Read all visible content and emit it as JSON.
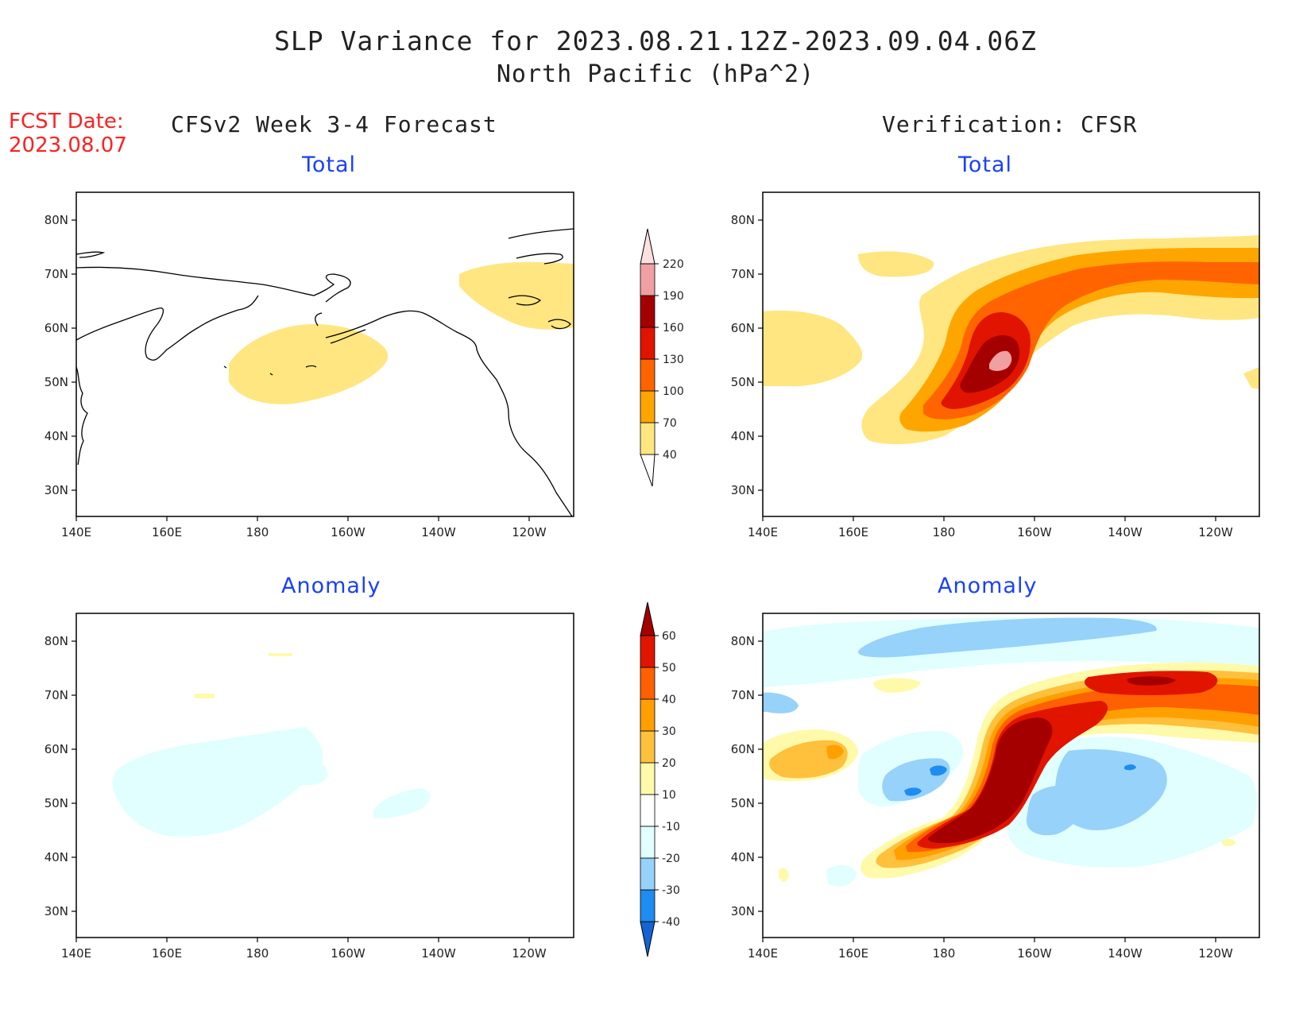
{
  "title_line1": "SLP Variance for 2023.08.21.12Z-2023.09.04.06Z",
  "title_line2": "North Pacific (hPa^2)",
  "fcst_label": "FCST Date:",
  "fcst_date": "2023.08.07",
  "left_header": "CFSv2 Week 3-4 Forecast",
  "right_header": "Verification: CFSR",
  "panels": {
    "fc_total": {
      "title": "Total"
    },
    "vf_total": {
      "title": "Total"
    },
    "fc_anom": {
      "title": "Anomaly"
    },
    "vf_anom": {
      "title": "Anomaly"
    }
  },
  "lon_labels": [
    "140E",
    "160E",
    "180",
    "160W",
    "140W",
    "120W"
  ],
  "lat_labels": [
    "80N",
    "70N",
    "60N",
    "50N",
    "40N",
    "30N"
  ],
  "colorbar_total": {
    "levels": [
      "40",
      "70",
      "100",
      "130",
      "160",
      "190",
      "220"
    ],
    "colors": [
      "#ffe680",
      "#ffa500",
      "#ff6400",
      "#e01400",
      "#a50000",
      "#f0a0a0",
      "#ffe0e0"
    ]
  },
  "colorbar_anom": {
    "levels": [
      "-40",
      "-30",
      "-20",
      "-10",
      "10",
      "20",
      "30",
      "40",
      "50",
      "60"
    ],
    "colors": [
      "#1464d2",
      "#1e8cf0",
      "#96d2fa",
      "#e1ffff",
      "#ffffff",
      "#fffaaa",
      "#ffc03c",
      "#ffa000",
      "#ff6000",
      "#e11400",
      "#a50000"
    ]
  }
}
